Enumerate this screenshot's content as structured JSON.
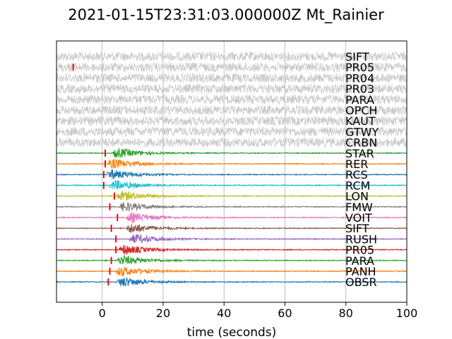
{
  "chart_data": {
    "type": "line",
    "title": "2021-01-15T23:31:03.000000Z Mt_Rainier",
    "xlabel": "time (seconds)",
    "ylabel": "",
    "xlim": [
      -15,
      100
    ],
    "xticks": [
      "0",
      "20",
      "40",
      "60",
      "80",
      "100"
    ],
    "xtick_values": [
      0,
      20,
      40,
      60,
      80,
      100
    ],
    "grid": "vertical lines at x ticks",
    "noise_color": "#c8c8c8",
    "series": [
      {
        "name": "SIFT",
        "color": "#c8c8c8",
        "pick": null,
        "onset": null
      },
      {
        "name": "PR05",
        "color": "#c8c8c8",
        "pick": -9.5,
        "onset": null
      },
      {
        "name": "PR04",
        "color": "#c8c8c8",
        "pick": null,
        "onset": null
      },
      {
        "name": "PR03",
        "color": "#c8c8c8",
        "pick": null,
        "onset": null
      },
      {
        "name": "PARA",
        "color": "#c8c8c8",
        "pick": null,
        "onset": null
      },
      {
        "name": "OPCH",
        "color": "#c8c8c8",
        "pick": null,
        "onset": null
      },
      {
        "name": "KAUT",
        "color": "#c8c8c8",
        "pick": null,
        "onset": null
      },
      {
        "name": "GTWY",
        "color": "#c8c8c8",
        "pick": null,
        "onset": null
      },
      {
        "name": "CRBN",
        "color": "#c8c8c8",
        "pick": null,
        "onset": null
      },
      {
        "name": "STAR",
        "color": "#2ca02c",
        "pick": 1.0,
        "onset": 3.5
      },
      {
        "name": "RER",
        "color": "#ff7f0e",
        "pick": 1.0,
        "onset": 2.0
      },
      {
        "name": "RCS",
        "color": "#1f77b4",
        "pick": 0.5,
        "onset": 1.5
      },
      {
        "name": "RCM",
        "color": "#17becf",
        "pick": 0.5,
        "onset": 2.5
      },
      {
        "name": "LON",
        "color": "#bcbd22",
        "pick": 4.0,
        "onset": 5.0
      },
      {
        "name": "FMW",
        "color": "#7f7f7f",
        "pick": 2.5,
        "onset": 5.5
      },
      {
        "name": "VOIT",
        "color": "#e377c2",
        "pick": 5.0,
        "onset": 8.0
      },
      {
        "name": "SIFT",
        "color": "#8c564b",
        "pick": 3.0,
        "onset": 8.0
      },
      {
        "name": "RUSH",
        "color": "#9467bd",
        "pick": 4.5,
        "onset": 9.0
      },
      {
        "name": "PR05",
        "color": "#d62728",
        "pick": 4.5,
        "onset": 5.5
      },
      {
        "name": "PARA",
        "color": "#2ca02c",
        "pick": 3.0,
        "onset": 5.0
      },
      {
        "name": "PANH",
        "color": "#ff7f0e",
        "pick": 2.5,
        "onset": 4.5
      },
      {
        "name": "OBSR",
        "color": "#1f77b4",
        "pick": 2.0,
        "onset": 5.0
      }
    ]
  }
}
